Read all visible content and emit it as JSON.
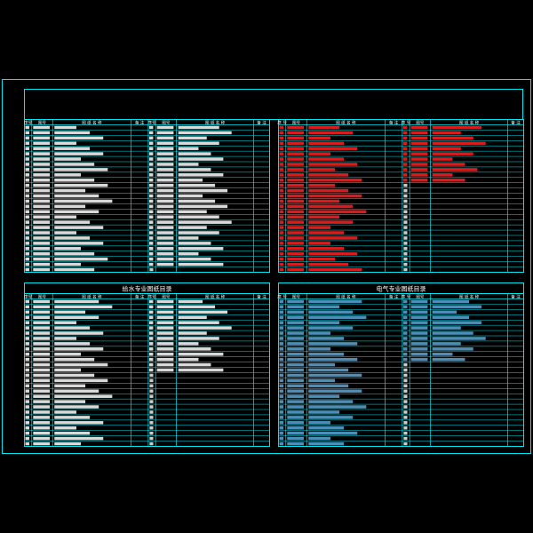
{
  "colors": {
    "background": "#000000",
    "frame": "#00e5ee",
    "white_text": "#ffffff",
    "red_text": "#ff2020",
    "blue_text": "#5aa6d6"
  },
  "panels": [
    {
      "id": "top-left",
      "title": "",
      "text_color": "white",
      "headers": [
        "序号",
        "图号",
        "图 纸 名 称",
        "备 注",
        "序号",
        "图号",
        "图 纸 名 称",
        "备 注"
      ],
      "rows": 28,
      "right_rows": 27
    },
    {
      "id": "top-right",
      "title": "",
      "text_color": "red",
      "headers": [
        "序 号",
        "图号",
        "图 纸 名 称",
        "备 注",
        "序 号",
        "图号",
        "图 纸 名 称",
        "备 注"
      ],
      "rows": 28,
      "right_rows": 11
    },
    {
      "id": "bottom-left",
      "title": "给水专业图纸目录",
      "text_color": "white",
      "headers": [
        "序号",
        "图号",
        "图 纸 名 称",
        "备 注",
        "序号",
        "图号",
        "图 纸 名 称",
        "备 注"
      ],
      "rows": 28,
      "right_rows": 14
    },
    {
      "id": "bottom-right",
      "title": "电气专业图纸目录",
      "text_color": "blue",
      "headers": [
        "序 号",
        "图号",
        "图 纸 名 称",
        "备 注",
        "序 号",
        "图号",
        "图 纸 名 称",
        "备 注"
      ],
      "rows": 28,
      "right_rows": 12
    }
  ]
}
